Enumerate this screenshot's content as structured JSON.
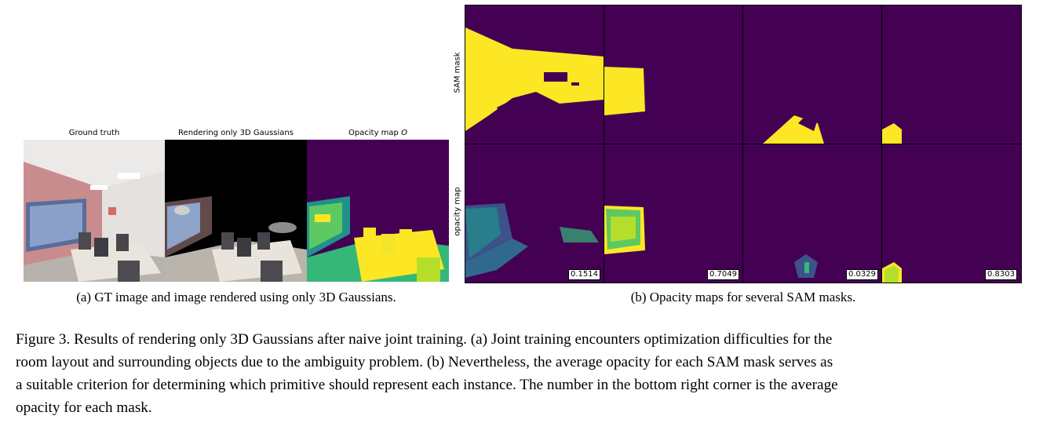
{
  "figure_a": {
    "titles": [
      "Ground truth",
      "Rendering only 3D Gaussians",
      "Opacity map"
    ],
    "opacity_symbol": "O",
    "subcaption": "(a) GT image and image rendered using only 3D Gaussians."
  },
  "figure_b": {
    "row_labels": [
      "SAM mask",
      "opacity map"
    ],
    "values": [
      "0.1514",
      "0.7049",
      "0.0329",
      "0.8303"
    ],
    "subcaption": "(b) Opacity maps for several SAM masks."
  },
  "caption": {
    "lines": [
      "Figure 3. Results of rendering only 3D Gaussians after naive joint training. (a) Joint training encounters optimization difficulties for the",
      "room layout and surrounding objects due to the ambiguity problem. (b) Nevertheless, the average opacity for each SAM mask serves as",
      "a suitable criterion for determining which primitive should represent each instance. The number in the bottom right corner is the average",
      "opacity for each mask."
    ]
  },
  "colors": {
    "viridis_dark": "#440154",
    "viridis_yellow": "#fde725",
    "viridis_green": "#35b779",
    "viridis_teal": "#21918c"
  }
}
